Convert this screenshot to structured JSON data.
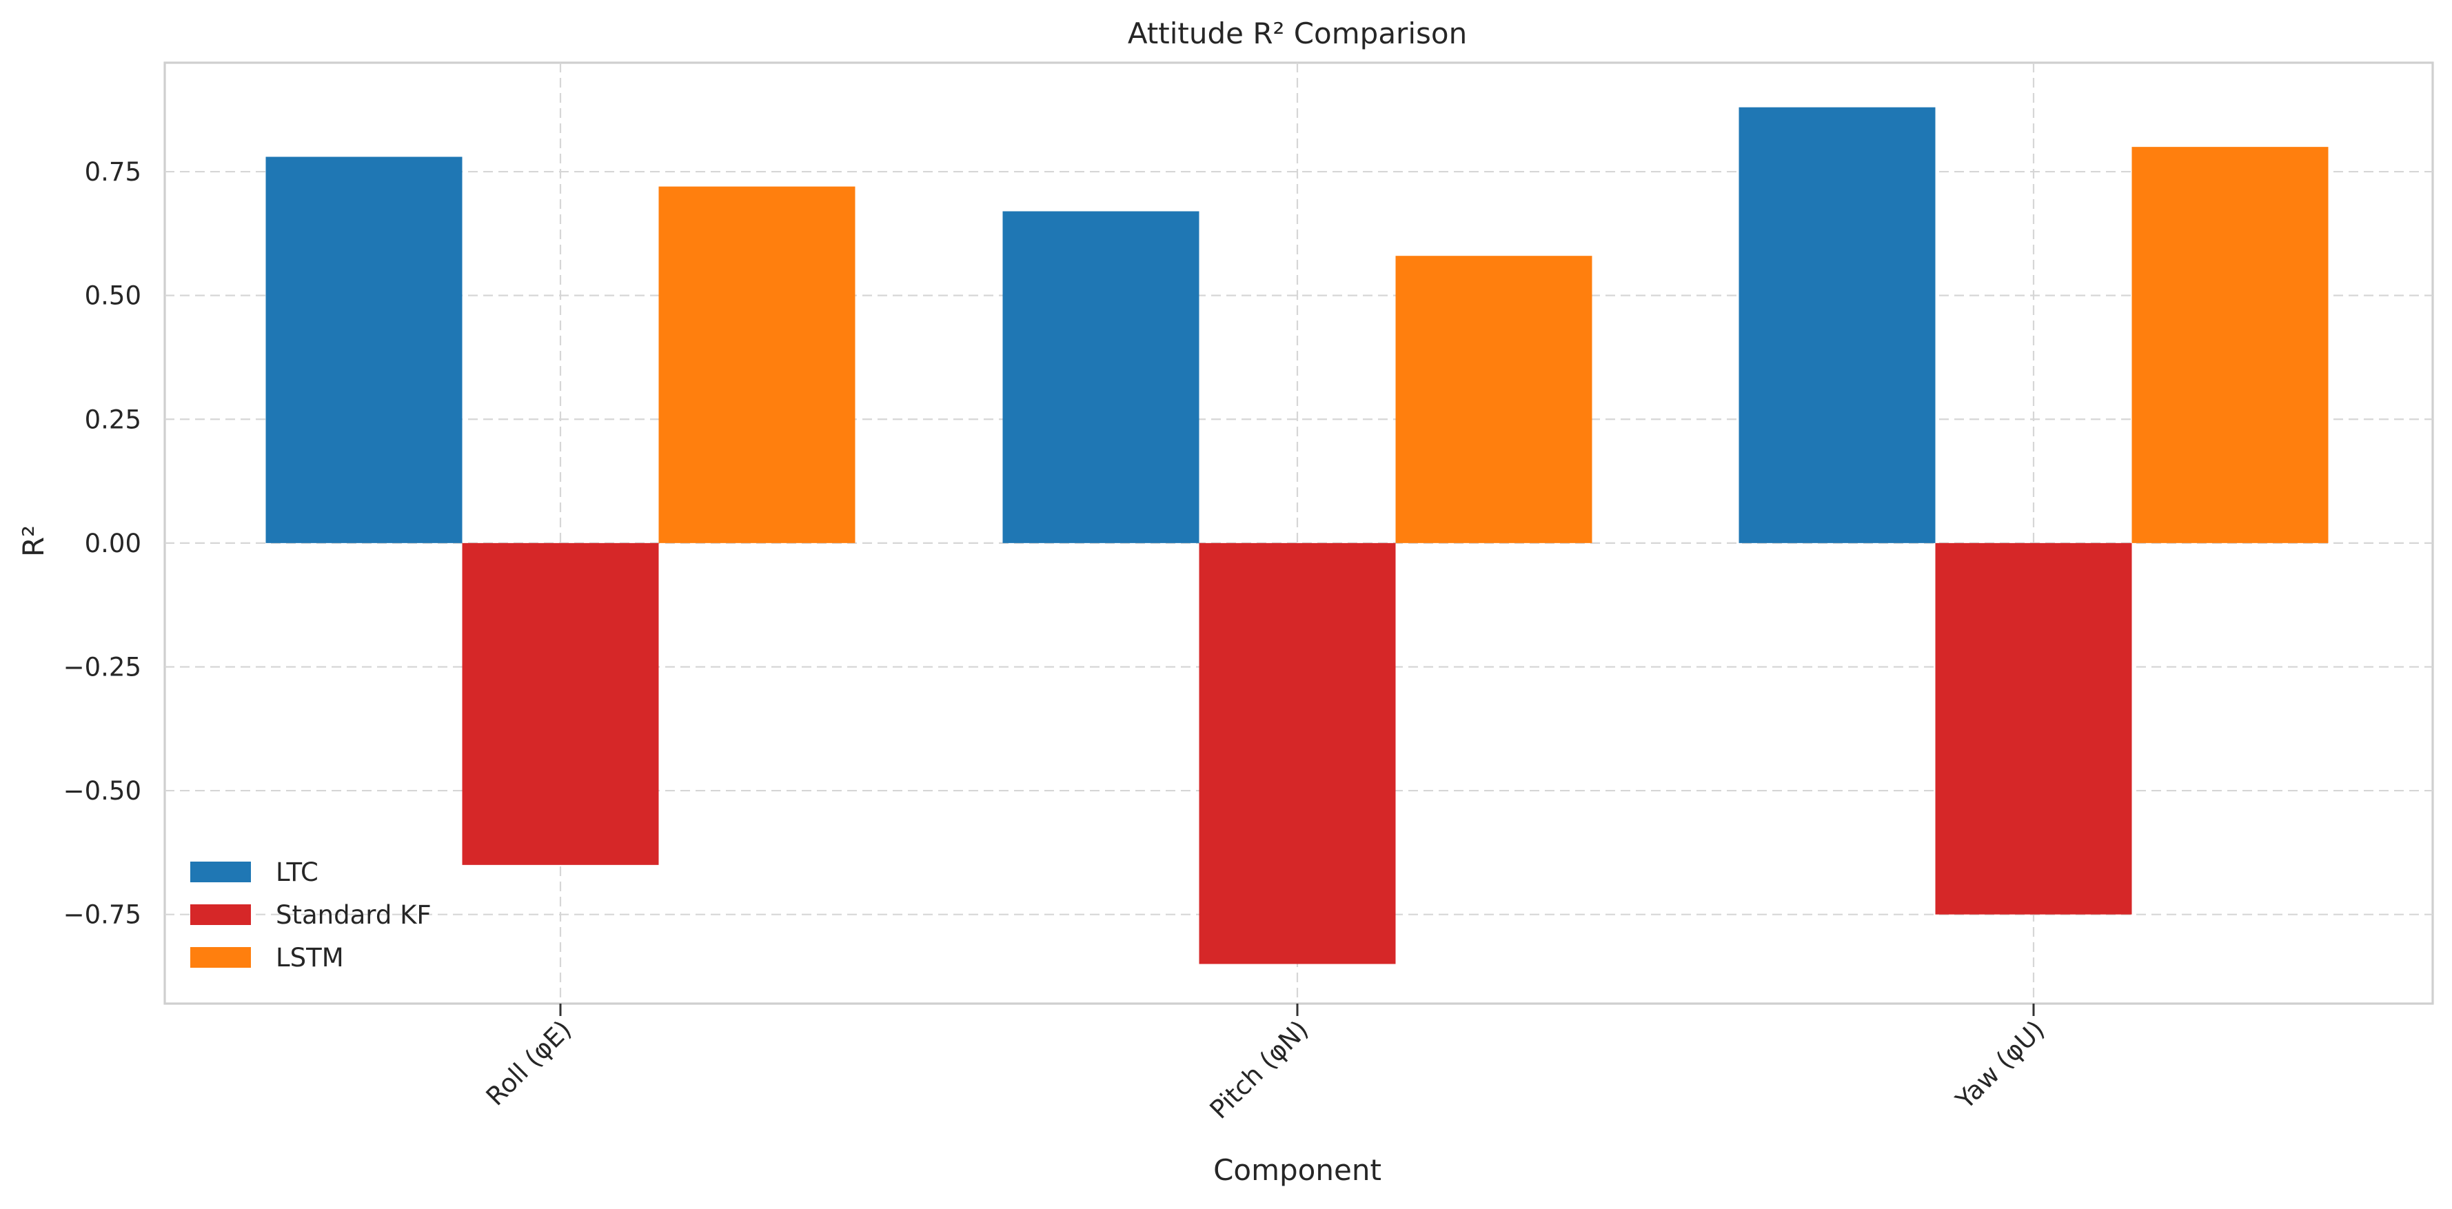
{
  "chart_data": {
    "type": "bar",
    "title": "Attitude R² Comparison",
    "xlabel": "Component",
    "ylabel": "R²",
    "categories": [
      "Roll (φE)",
      "Pitch (φN)",
      "Yaw (φU)"
    ],
    "series": [
      {
        "name": "LTC",
        "color": "#1f77b4",
        "values": [
          0.78,
          0.67,
          0.88
        ]
      },
      {
        "name": "Standard KF",
        "color": "#d62728",
        "values": [
          -0.65,
          -0.85,
          -0.75
        ]
      },
      {
        "name": "LSTM",
        "color": "#ff7f0e",
        "values": [
          0.72,
          0.58,
          0.8
        ]
      }
    ],
    "ylim": [
      -0.93,
      0.97
    ],
    "yticks": [
      {
        "value": 0.75,
        "label": "0.75"
      },
      {
        "value": 0.5,
        "label": "0.50"
      },
      {
        "value": 0.25,
        "label": "0.25"
      },
      {
        "value": 0.0,
        "label": "0.00"
      },
      {
        "value": -0.25,
        "label": "−0.25"
      },
      {
        "value": -0.5,
        "label": "−0.50"
      },
      {
        "value": -0.75,
        "label": "−0.75"
      }
    ],
    "grid": true,
    "legend_position": "lower-left"
  }
}
